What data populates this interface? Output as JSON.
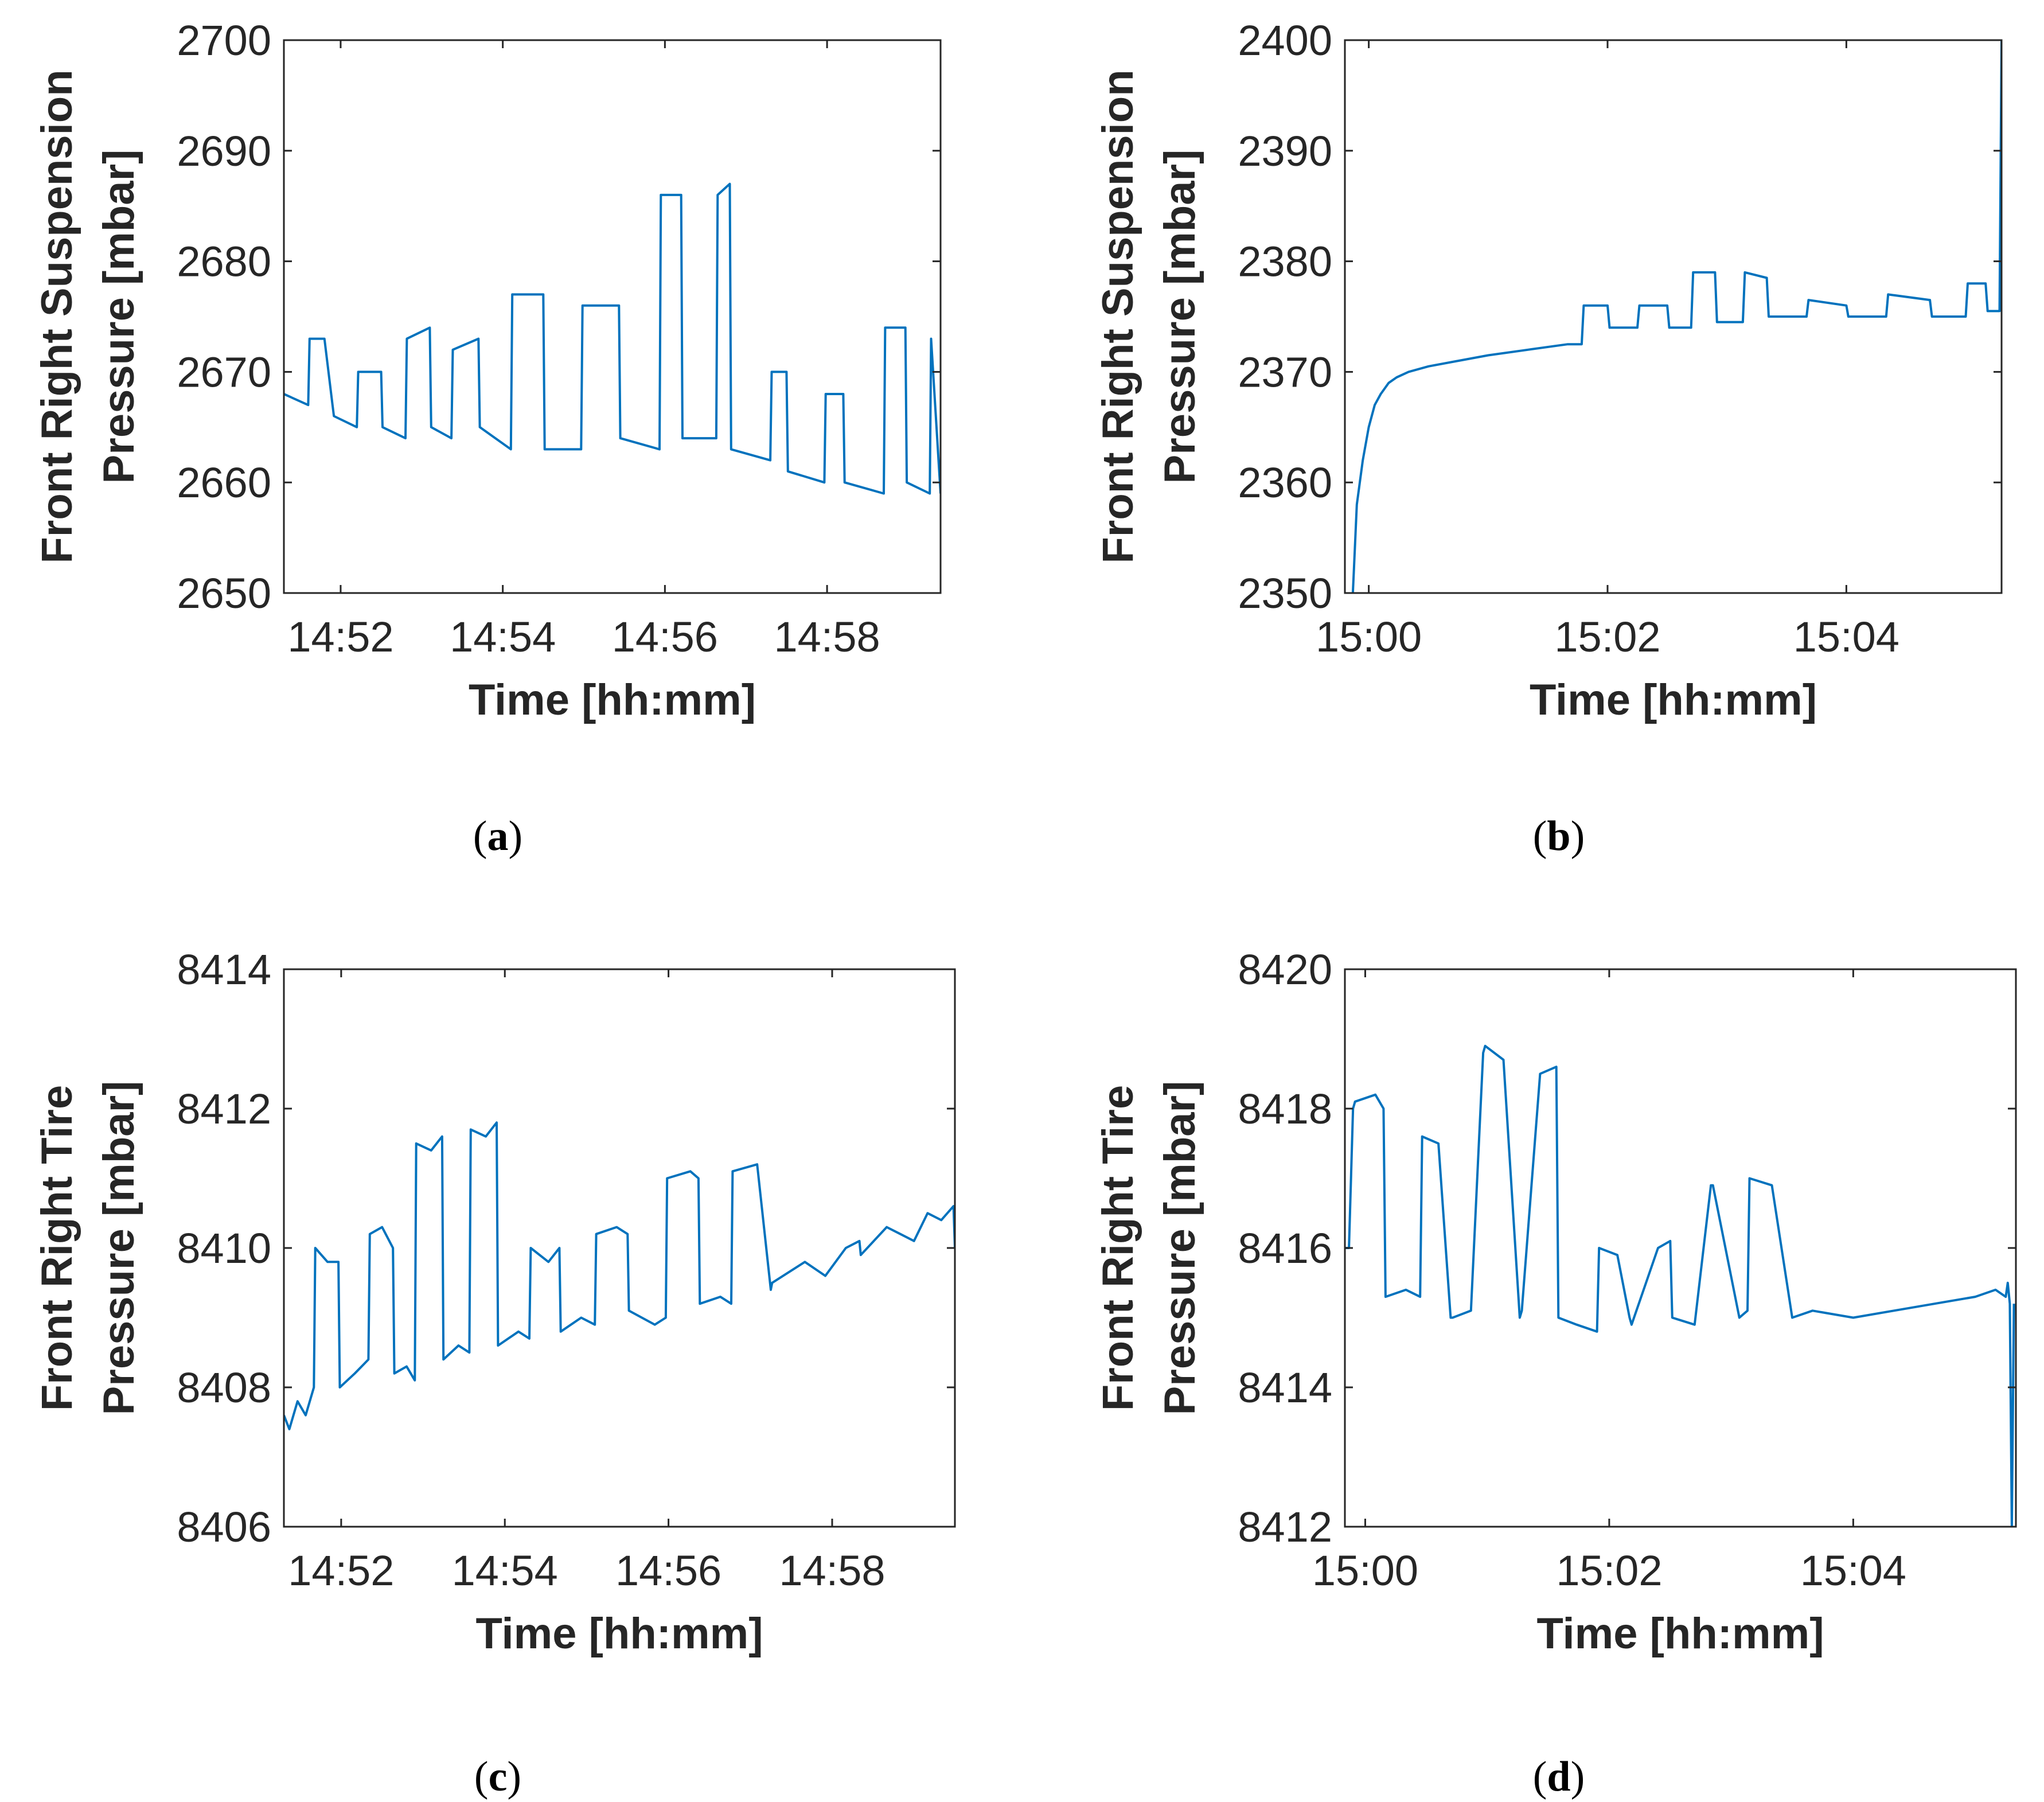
{
  "colors": {
    "series": "#0072BD",
    "axes": "#262626"
  },
  "chart_data": [
    {
      "type": "line",
      "panel": "a",
      "caption_letter": "a",
      "xlabel": "Time [hh:mm]",
      "ylabel_lines": [
        "Front Right Suspension",
        "Pressure [mbar]"
      ],
      "xlim": [
        "14:51:18",
        "14:59:24"
      ],
      "ylim": [
        2650,
        2700
      ],
      "xticks": [
        "14:52",
        "14:54",
        "14:56",
        "14:58"
      ],
      "yticks": [
        2650,
        2660,
        2670,
        2680,
        2690,
        2700
      ],
      "grid": false,
      "series": [
        {
          "x": [
            "14:51:18",
            "14:51:36",
            "14:51:37",
            "14:51:48",
            "14:51:54",
            "14:51:55",
            "14:52:12",
            "14:52:13",
            "14:52:30",
            "14:52:31",
            "14:52:48",
            "14:52:49",
            "14:53:06",
            "14:53:07",
            "14:53:22",
            "14:53:23",
            "14:53:42",
            "14:53:43",
            "14:54:06",
            "14:54:07",
            "14:54:30",
            "14:54:31",
            "14:54:58",
            "14:54:59",
            "14:55:26",
            "14:55:27",
            "14:55:56",
            "14:55:57",
            "14:56:12",
            "14:56:13",
            "14:56:38",
            "14:56:39",
            "14:56:48",
            "14:56:49",
            "14:57:18",
            "14:57:19",
            "14:57:30",
            "14:57:31",
            "14:57:58",
            "14:57:59",
            "14:58:12",
            "14:58:13",
            "14:58:42",
            "14:58:43",
            "14:58:58",
            "14:58:59",
            "14:59:16",
            "14:59:17",
            "14:59:24"
          ],
          "y": [
            2668,
            2667,
            2673,
            2673,
            2667,
            2666,
            2665,
            2670,
            2670,
            2665,
            2664,
            2673,
            2674,
            2665,
            2664,
            2672,
            2673,
            2665,
            2663,
            2677,
            2677,
            2663,
            2663,
            2676,
            2676,
            2664,
            2663,
            2686,
            2686,
            2664,
            2664,
            2686,
            2687,
            2663,
            2662,
            2670,
            2670,
            2661,
            2660,
            2668,
            2668,
            2660,
            2659,
            2674,
            2674,
            2660,
            2659,
            2673,
            2659
          ]
        }
      ]
    },
    {
      "type": "line",
      "panel": "b",
      "caption_letter": "b",
      "xlabel": "Time [hh:mm]",
      "ylabel_lines": [
        "Front Right Suspension",
        "Pressure [mbar]"
      ],
      "xlim": [
        "14:59:48",
        "15:05:18"
      ],
      "ylim": [
        2350,
        2400
      ],
      "xticks": [
        "15:00",
        "15:02",
        "15:04"
      ],
      "yticks": [
        2350,
        2360,
        2370,
        2380,
        2390,
        2400
      ],
      "grid": false,
      "series": [
        {
          "x": [
            "14:59:52",
            "14:59:54",
            "14:59:57",
            "15:00:00",
            "15:00:03",
            "15:00:06",
            "15:00:10",
            "15:00:14",
            "15:00:20",
            "15:00:30",
            "15:00:45",
            "15:01:00",
            "15:01:20",
            "15:01:40",
            "15:01:47",
            "15:01:48",
            "15:02:00",
            "15:02:01",
            "15:02:15",
            "15:02:16",
            "15:02:30",
            "15:02:31",
            "15:02:42",
            "15:02:43",
            "15:02:54",
            "15:02:55",
            "15:03:08",
            "15:03:09",
            "15:03:20",
            "15:03:21",
            "15:03:40",
            "15:03:41",
            "15:04:00",
            "15:04:01",
            "15:04:20",
            "15:04:21",
            "15:04:42",
            "15:04:43",
            "15:05:00",
            "15:05:01",
            "15:05:10",
            "15:05:11",
            "15:05:17",
            "15:05:18"
          ],
          "y": [
            2350,
            2358,
            2362,
            2365,
            2367,
            2368,
            2369,
            2369.5,
            2370,
            2370.5,
            2371,
            2371.5,
            2372,
            2372.5,
            2372.5,
            2376,
            2376,
            2374,
            2374,
            2376,
            2376,
            2374,
            2374,
            2379,
            2379,
            2374.5,
            2374.5,
            2379,
            2378.5,
            2375,
            2375,
            2376.5,
            2376,
            2375,
            2375,
            2377,
            2376.5,
            2375,
            2375,
            2378,
            2378,
            2375.5,
            2375.5,
            2400
          ]
        }
      ]
    },
    {
      "type": "line",
      "panel": "c",
      "caption_letter": "c",
      "xlabel": "Time [hh:mm]",
      "ylabel_lines": [
        "Front Right Tire",
        "Pressure [mbar]"
      ],
      "xlim": [
        "14:51:18",
        "14:59:30"
      ],
      "ylim": [
        8406,
        8414
      ],
      "xticks": [
        "14:52",
        "14:54",
        "14:56",
        "14:58"
      ],
      "yticks": [
        8406,
        8408,
        8410,
        8412,
        8414
      ],
      "grid": false,
      "series": [
        {
          "x": [
            "14:51:18",
            "14:51:22",
            "14:51:28",
            "14:51:34",
            "14:51:40",
            "14:51:41",
            "14:51:50",
            "14:51:58",
            "14:51:59",
            "14:52:10",
            "14:52:20",
            "14:52:21",
            "14:52:30",
            "14:52:38",
            "14:52:39",
            "14:52:48",
            "14:52:54",
            "14:52:55",
            "14:53:06",
            "14:53:14",
            "14:53:15",
            "14:53:26",
            "14:53:34",
            "14:53:35",
            "14:53:46",
            "14:53:54",
            "14:53:55",
            "14:54:10",
            "14:54:18",
            "14:54:19",
            "14:54:32",
            "14:54:40",
            "14:54:41",
            "14:54:56",
            "14:55:06",
            "14:55:07",
            "14:55:22",
            "14:55:30",
            "14:55:31",
            "14:55:50",
            "14:55:58",
            "14:55:59",
            "14:56:16",
            "14:56:22",
            "14:56:23",
            "14:56:38",
            "14:56:46",
            "14:56:47",
            "14:57:05",
            "14:57:15",
            "14:57:16",
            "14:57:40",
            "14:57:55",
            "14:58:10",
            "14:58:20",
            "14:58:21",
            "14:58:40",
            "14:58:50",
            "14:59:00",
            "14:59:10",
            "14:59:20",
            "14:59:29",
            "14:59:30"
          ],
          "y": [
            8407.6,
            8407.4,
            8407.8,
            8407.6,
            8408,
            8410,
            8409.8,
            8409.8,
            8408,
            8408.2,
            8408.4,
            8410.2,
            8410.3,
            8410,
            8408.2,
            8408.3,
            8408.1,
            8411.5,
            8411.4,
            8411.6,
            8408.4,
            8408.6,
            8408.5,
            8411.7,
            8411.6,
            8411.8,
            8408.6,
            8408.8,
            8408.7,
            8410,
            8409.8,
            8410,
            8408.8,
            8409,
            8408.9,
            8410.2,
            8410.3,
            8410.2,
            8409.1,
            8408.9,
            8409,
            8411,
            8411.1,
            8411,
            8409.2,
            8409.3,
            8409.2,
            8411.1,
            8411.2,
            8409.4,
            8409.5,
            8409.8,
            8409.6,
            8410,
            8410.1,
            8409.9,
            8410.3,
            8410.2,
            8410.1,
            8410.5,
            8410.4,
            8410.6,
            8410
          ]
        }
      ]
    },
    {
      "type": "line",
      "panel": "d",
      "caption_letter": "d",
      "xlabel": "Time [hh:mm]",
      "ylabel_lines": [
        "Front Right Tire",
        "Pressure [mbar]"
      ],
      "xlim": [
        "14:59:50",
        "15:05:20"
      ],
      "ylim": [
        8412,
        8420
      ],
      "xticks": [
        "15:00",
        "15:02",
        "15:04"
      ],
      "yticks": [
        8412,
        8414,
        8416,
        8418,
        8420
      ],
      "grid": false,
      "series": [
        {
          "x": [
            "14:59:50",
            "14:59:52",
            "14:59:54",
            "14:59:55",
            "15:00:05",
            "15:00:09",
            "15:00:10",
            "15:00:20",
            "15:00:27",
            "15:00:28",
            "15:00:36",
            "15:00:42",
            "15:00:43",
            "15:00:52",
            "15:00:58",
            "15:00:59",
            "15:01:08",
            "15:01:16",
            "15:01:17",
            "15:01:26",
            "15:01:34",
            "15:01:35",
            "15:01:44",
            "15:01:54",
            "15:01:55",
            "15:02:04",
            "15:02:10",
            "15:02:11",
            "15:02:24",
            "15:02:30",
            "15:02:31",
            "15:02:42",
            "15:02:50",
            "15:02:51",
            "15:03:04",
            "15:03:08",
            "15:03:09",
            "15:03:20",
            "15:03:30",
            "15:03:40",
            "15:04:00",
            "15:04:20",
            "15:04:40",
            "15:05:00",
            "15:05:10",
            "15:05:15",
            "15:05:16",
            "15:05:17",
            "15:05:18",
            "15:05:19"
          ],
          "y": [
            8416,
            8416,
            8418,
            8418.1,
            8418.2,
            8418,
            8415.3,
            8415.4,
            8415.3,
            8417.6,
            8417.5,
            8415,
            8415,
            8415.1,
            8418.8,
            8418.9,
            8418.7,
            8415,
            8415.1,
            8418.5,
            8418.6,
            8415,
            8414.9,
            8414.8,
            8416,
            8415.9,
            8415,
            8414.9,
            8416,
            8416.1,
            8415,
            8414.9,
            8416.9,
            8416.9,
            8415,
            8415.1,
            8417,
            8416.9,
            8415,
            8415.1,
            8415,
            8415.1,
            8415.2,
            8415.3,
            8415.4,
            8415.3,
            8415.5,
            8415.2,
            8412,
            8415.2
          ]
        }
      ]
    }
  ]
}
